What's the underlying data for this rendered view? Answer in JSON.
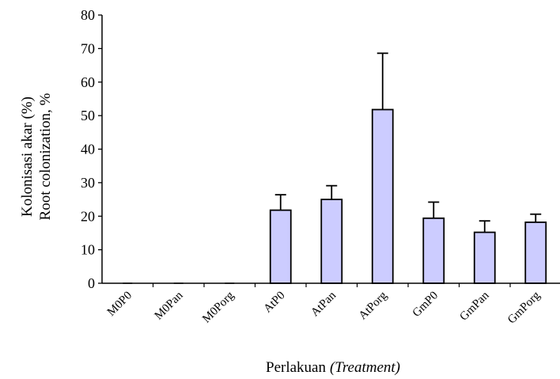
{
  "chart_data": {
    "type": "bar",
    "categories": [
      "M0P0",
      "M0Pan",
      "M0Porg",
      "AtP0",
      "AtPan",
      "AtPorg",
      "GmP0",
      "GmPan",
      "GmPorg"
    ],
    "values": [
      0,
      0,
      0,
      21.8,
      25.0,
      51.8,
      19.4,
      15.2,
      18.2
    ],
    "error_upper": [
      0,
      0,
      0,
      4.6,
      4.1,
      16.8,
      4.8,
      3.4,
      2.4
    ],
    "ylim": [
      0,
      80
    ],
    "yticks": [
      0,
      10,
      20,
      30,
      40,
      50,
      60,
      70,
      80
    ],
    "ylabel_line1": "Kolonisasi akar (%)",
    "ylabel_line2": "Root colonization, %",
    "xlabel_main": "Perlakuan",
    "xlabel_italic": "(Treatment)",
    "bar_color": "#ccccff",
    "bar_edge_color": "#000000"
  }
}
